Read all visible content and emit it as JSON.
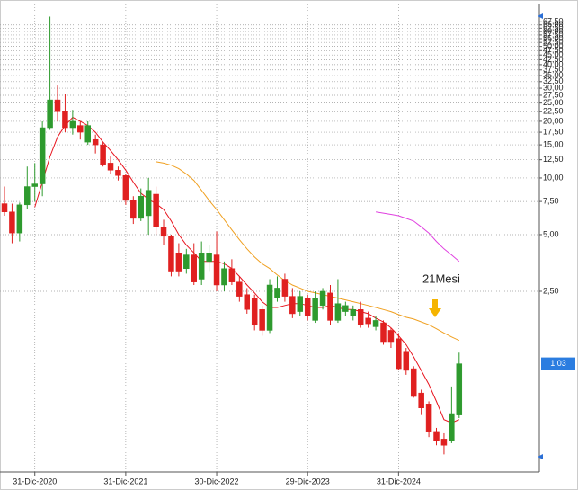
{
  "chart_data": {
    "type": "candlestick",
    "annotation": "21Mesi",
    "categories": [
      null,
      null,
      null,
      null,
      "31-Dic-2020",
      null,
      null,
      null,
      null,
      null,
      null,
      null,
      null,
      null,
      null,
      null,
      "31-Dic-2021",
      null,
      null,
      null,
      null,
      null,
      null,
      null,
      null,
      null,
      null,
      null,
      "30-Dic-2022",
      null,
      null,
      null,
      null,
      null,
      null,
      null,
      null,
      null,
      null,
      null,
      "29-Dic-2023",
      null,
      null,
      null,
      null,
      null,
      null,
      null,
      null,
      null,
      null,
      null,
      "31-Dic-2024",
      null,
      null,
      null,
      null,
      null,
      null,
      null,
      null
    ],
    "open": [
      7.3,
      6.6,
      5.1,
      7.2,
      9.0,
      9.3,
      18.5,
      26,
      22.5,
      18.5,
      19,
      15.5,
      16,
      15,
      12,
      11,
      10.3,
      7.6,
      6.1,
      6.3,
      8.2,
      5.5,
      4.9,
      4.0,
      3.3,
      3.9,
      2.9,
      3.6,
      3.9,
      2.7,
      3.3,
      2.8,
      2.4,
      2.3,
      2.0,
      1.55,
      2.3,
      2.9,
      2.35,
      1.95,
      2.3,
      1.75,
      2.1,
      2.45,
      1.75,
      1.95,
      1.85,
      2.0,
      1.8,
      1.62,
      1.7,
      1.55,
      1.4,
      1.2,
      0.97,
      0.72,
      0.63,
      0.45,
      0.41,
      0.4,
      0.55
    ],
    "high": [
      9.0,
      7.3,
      7.4,
      11.5,
      12,
      20,
      72,
      31,
      28,
      23,
      20,
      20,
      17,
      15.5,
      13,
      11.5,
      10.5,
      8.0,
      8.8,
      10,
      9.0,
      6,
      5.0,
      4.5,
      4.2,
      4.5,
      4.6,
      4.4,
      5.2,
      3.6,
      3.7,
      3.0,
      2.6,
      2.4,
      2.1,
      2.9,
      3.0,
      3.1,
      2.6,
      2.5,
      2.4,
      2.5,
      2.6,
      2.7,
      2.9,
      2.2,
      2.1,
      2.2,
      1.95,
      1.85,
      1.75,
      1.6,
      1.5,
      1.25,
      1.0,
      0.75,
      0.65,
      0.47,
      0.44,
      0.78,
      1.18
    ],
    "low": [
      6.3,
      4.5,
      4.6,
      6.8,
      7.5,
      8.0,
      18,
      20,
      17.5,
      17,
      16,
      15,
      13.5,
      11.5,
      10.5,
      9.7,
      7.2,
      5.7,
      5.9,
      5.0,
      5.0,
      4.4,
      3.0,
      3.0,
      3.1,
      2.7,
      2.7,
      3.2,
      2.5,
      2.5,
      2.7,
      2.2,
      1.9,
      1.55,
      1.45,
      1.5,
      2.2,
      2.2,
      1.8,
      1.85,
      1.75,
      1.7,
      2.0,
      1.65,
      1.7,
      1.85,
      1.75,
      1.6,
      1.6,
      1.55,
      1.3,
      1.25,
      0.95,
      0.9,
      0.68,
      0.55,
      0.42,
      0.38,
      0.34,
      0.39,
      0.53
    ],
    "close": [
      6.6,
      5.1,
      7.2,
      9.0,
      9.3,
      18.5,
      26,
      22.5,
      18.5,
      20,
      17.5,
      19,
      15,
      11.8,
      11,
      10.3,
      7.6,
      6.1,
      8.0,
      8.6,
      5.5,
      4.9,
      3.2,
      3.2,
      3.9,
      2.8,
      4.0,
      4.0,
      2.7,
      3.3,
      2.8,
      2.35,
      2.0,
      1.65,
      1.55,
      2.7,
      2.6,
      2.35,
      1.9,
      2.35,
      1.85,
      2.3,
      2.5,
      1.75,
      2.15,
      2.1,
      2.0,
      1.65,
      1.68,
      1.75,
      1.35,
      1.35,
      0.97,
      0.95,
      0.69,
      0.6,
      0.45,
      0.4,
      0.38,
      0.56,
      1.03
    ],
    "last_close_label": "1,03",
    "up_color": "#2e9a2e",
    "down_color": "#e02020",
    "series": [
      {
        "color": "#e8141e",
        "values": [
          null,
          null,
          null,
          null,
          7.0,
          9.5,
          13,
          16.5,
          19,
          21,
          20,
          19,
          17.5,
          15.5,
          14,
          12.5,
          11,
          9.5,
          8.3,
          7.7,
          7.3,
          6.8,
          5.9,
          5.0,
          4.4,
          4.0,
          3.6,
          3.6,
          3.6,
          3.5,
          3.3,
          3.0,
          2.7,
          2.45,
          2.2,
          2.05,
          2.05,
          2.1,
          2.15,
          2.15,
          2.1,
          2.05,
          2.05,
          2.1,
          2.05,
          2.0,
          2.0,
          1.95,
          1.9,
          1.8,
          1.72,
          1.6,
          1.45,
          1.3,
          1.12,
          0.95,
          0.8,
          0.65,
          0.52,
          0.5,
          0.52
        ]
      },
      {
        "color": "#f0a020",
        "values": [
          null,
          null,
          null,
          null,
          null,
          null,
          null,
          null,
          null,
          null,
          null,
          null,
          null,
          null,
          null,
          null,
          null,
          null,
          null,
          null,
          12.2,
          12.0,
          11.7,
          11.2,
          10.5,
          9.7,
          8.6,
          7.6,
          6.8,
          6.0,
          5.3,
          4.7,
          4.2,
          3.8,
          3.5,
          3.3,
          3.05,
          2.85,
          2.7,
          2.6,
          2.5,
          2.45,
          2.4,
          2.35,
          2.3,
          2.25,
          2.2,
          2.15,
          2.1,
          2.05,
          2.0,
          1.95,
          1.88,
          1.82,
          1.78,
          1.72,
          1.66,
          1.58,
          1.5,
          1.43,
          1.37
        ]
      },
      {
        "color": "#e040e0",
        "values": [
          null,
          null,
          null,
          null,
          null,
          null,
          null,
          null,
          null,
          null,
          null,
          null,
          null,
          null,
          null,
          null,
          null,
          null,
          null,
          null,
          null,
          null,
          null,
          null,
          null,
          null,
          null,
          null,
          null,
          null,
          null,
          null,
          null,
          null,
          null,
          null,
          null,
          null,
          null,
          null,
          null,
          null,
          null,
          null,
          null,
          null,
          null,
          null,
          null,
          6.6,
          6.5,
          6.4,
          6.3,
          6.1,
          5.9,
          5.5,
          5.1,
          4.6,
          4.2,
          3.9,
          3.6
        ]
      }
    ],
    "log_scale": true,
    "grid": true,
    "ylim": [
      0.274,
      83.5
    ],
    "yticks": [
      {
        "value": 2.5,
        "label": "2,50"
      },
      {
        "value": 5,
        "label": "5,00"
      },
      {
        "value": 7.5,
        "label": "7,50"
      },
      {
        "value": 10,
        "label": "10,00"
      },
      {
        "value": 12.5,
        "label": "12,50"
      },
      {
        "value": 15,
        "label": "15,00"
      },
      {
        "value": 17.5,
        "label": "17,50"
      },
      {
        "value": 20,
        "label": "20,00"
      },
      {
        "value": 22.5,
        "label": "22,50"
      },
      {
        "value": 25,
        "label": "25,00"
      },
      {
        "value": 27.5,
        "label": "27,50"
      },
      {
        "value": 30,
        "label": "30,00"
      },
      {
        "value": 32.5,
        "label": "32,50"
      },
      {
        "value": 35,
        "label": "35,00"
      },
      {
        "value": 37.5,
        "label": "37,50"
      },
      {
        "value": 40,
        "label": "40,00"
      },
      {
        "value": 42.5,
        "label": "42,50"
      },
      {
        "value": 45,
        "label": "45,00"
      },
      {
        "value": 47.5,
        "label": "47,50"
      },
      {
        "value": 50,
        "label": "50,00"
      },
      {
        "value": 52.5,
        "label": "52,50"
      },
      {
        "value": 55,
        "label": "55,00"
      },
      {
        "value": 57.5,
        "label": "57,50"
      },
      {
        "value": 60,
        "label": "60,00"
      },
      {
        "value": 62.5,
        "label": "62,50"
      },
      {
        "value": 65,
        "label": "65,00"
      },
      {
        "value": 67.5,
        "label": "67,50"
      }
    ]
  }
}
